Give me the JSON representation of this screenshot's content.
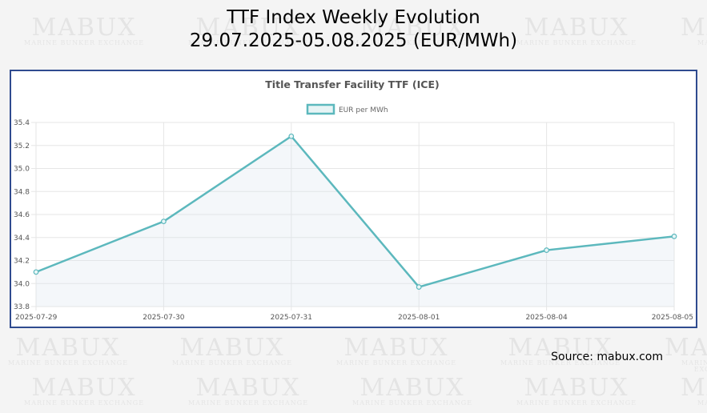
{
  "page": {
    "title_line1": "TTF Index Weekly Evolution",
    "title_line2": "29.07.2025-05.08.2025 (EUR/MWh)",
    "source": "Source: mabux.com"
  },
  "watermark": {
    "brand": "MABUX",
    "tagline": "MARINE BUNKER EXCHANGE"
  },
  "colors": {
    "line": "#5cb8bd",
    "fill": "rgba(220,228,240,0.30)",
    "border": "#2f4b8f",
    "grid": "#e6e6e6",
    "text": "#555555"
  },
  "chart_data": {
    "type": "line",
    "title": "Title Transfer Facility TTF (ICE)",
    "legend": "EUR per MWh",
    "legend_position": "top-center",
    "categories": [
      "2025-07-29",
      "2025-07-30",
      "2025-07-31",
      "2025-08-01",
      "2025-08-04",
      "2025-08-05"
    ],
    "series": [
      {
        "name": "EUR per MWh",
        "values": [
          34.1,
          34.54,
          35.28,
          33.97,
          34.29,
          34.41
        ]
      }
    ],
    "ylim": [
      33.8,
      35.4
    ],
    "yticks": [
      "33.8",
      "34.0",
      "34.2",
      "34.4",
      "34.6",
      "34.8",
      "35.0",
      "35.2",
      "35.4"
    ],
    "grid": true
  }
}
